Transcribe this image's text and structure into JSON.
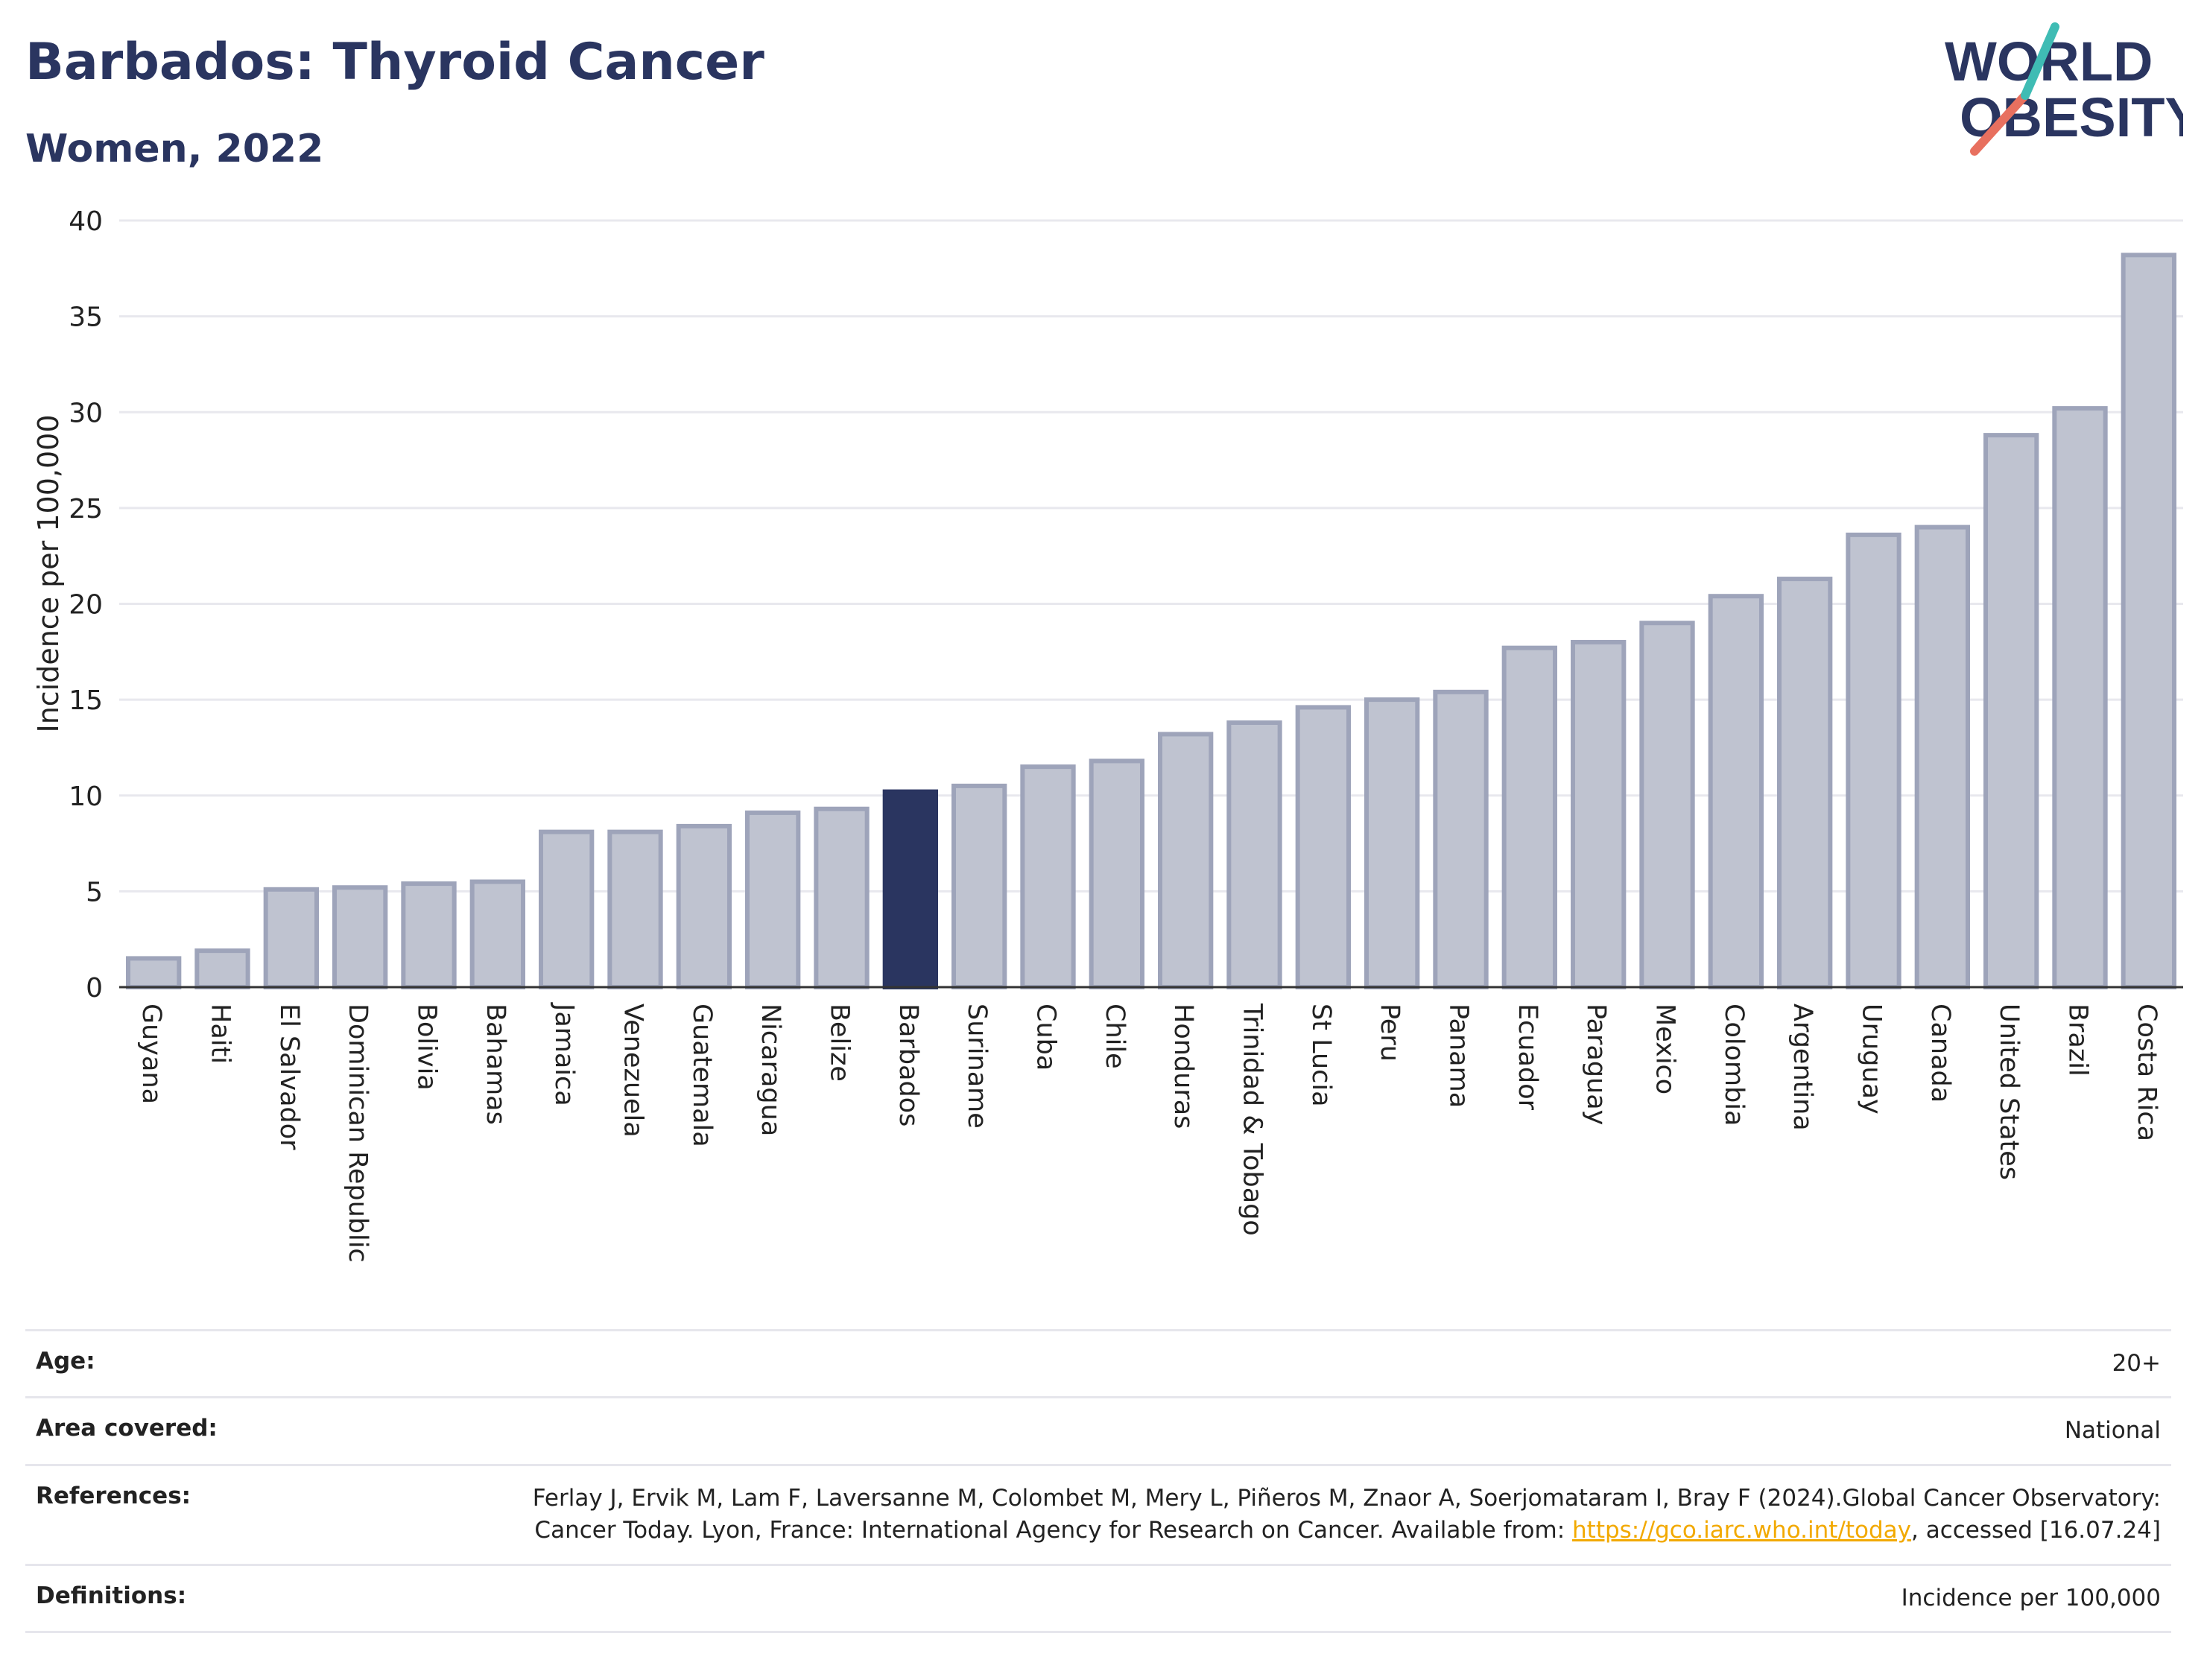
{
  "header": {
    "title": "Barbados: Thyroid Cancer",
    "subtitle": "Women, 2022"
  },
  "logo": {
    "line1": "WORLD",
    "line2": "OBESITY"
  },
  "chart_data": {
    "type": "bar",
    "ylabel": "Incidence per 100,000",
    "ylim": [
      0,
      40
    ],
    "yticks": [
      0,
      5,
      10,
      15,
      20,
      25,
      30,
      35,
      40
    ],
    "grid": true,
    "highlight": "Barbados",
    "colors": {
      "bar": "#bfc3d0",
      "bar_border": "#9ea4ba",
      "highlight": "#2a3560"
    },
    "categories": [
      "Guyana",
      "Haiti",
      "El Salvador",
      "Dominican Republic",
      "Bolivia",
      "Bahamas",
      "Jamaica",
      "Venezuela",
      "Guatemala",
      "Nicaragua",
      "Belize",
      "Barbados",
      "Suriname",
      "Cuba",
      "Chile",
      "Honduras",
      "Trinidad & Tobago",
      "St Lucia",
      "Peru",
      "Panama",
      "Ecuador",
      "Paraguay",
      "Mexico",
      "Colombia",
      "Argentina",
      "Uruguay",
      "Canada",
      "United States",
      "Brazil",
      "Costa Rica"
    ],
    "values": [
      1.5,
      1.9,
      5.1,
      5.2,
      5.4,
      5.5,
      8.1,
      8.1,
      8.4,
      9.1,
      9.3,
      10.2,
      10.5,
      11.5,
      11.8,
      13.2,
      13.8,
      14.6,
      15.0,
      15.4,
      17.7,
      18.0,
      19.0,
      20.4,
      21.3,
      23.6,
      24.0,
      28.8,
      30.2,
      38.2
    ]
  },
  "meta": {
    "age_label": "Age:",
    "age_value": "20+",
    "area_label": "Area covered:",
    "area_value": "National",
    "references_label": "References:",
    "references_text": "Ferlay J, Ervik M, Lam F, Laversanne M, Colombet M, Mery L, Piñeros M, Znaor A, Soerjomataram I, Bray F (2024).Global Cancer Observatory: Cancer Today. Lyon, France: International Agency for Research on Cancer. Available from: ",
    "references_link": "https://gco.iarc.who.int/today",
    "references_tail": ", accessed [16.07.24]",
    "definitions_label": "Definitions:",
    "definitions_value": "Incidence per 100,000"
  }
}
